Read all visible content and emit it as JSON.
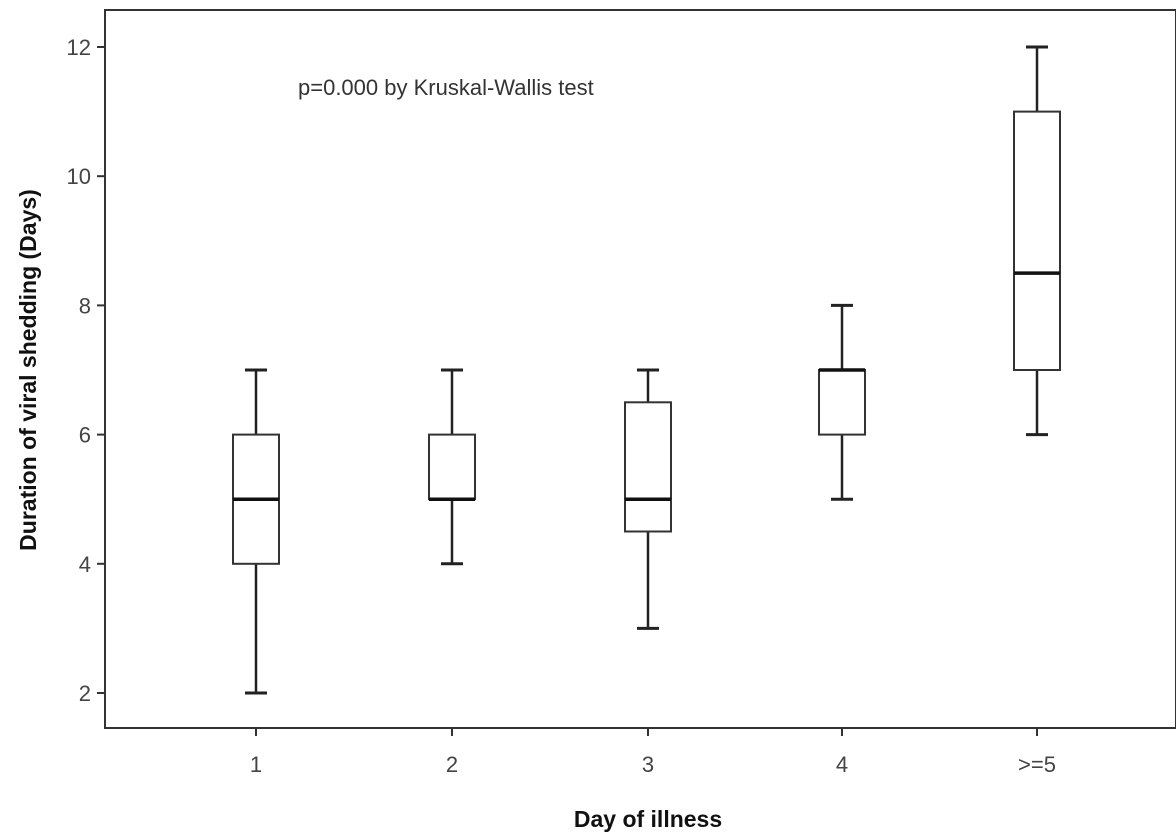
{
  "chart_data": {
    "type": "box",
    "title": "",
    "annotation": "p=0.000 by Kruskal-Wallis test",
    "xlabel": "Day of illness",
    "ylabel": "Duration of viral shedding (Days)",
    "ylim": [
      1.5,
      12.6
    ],
    "yticks": [
      2,
      4,
      6,
      8,
      10,
      12
    ],
    "categories": [
      "1",
      "2",
      "3",
      "4",
      ">=5"
    ],
    "boxes": [
      {
        "category": "1",
        "whisker_low": 2,
        "q1": 4,
        "median": 5,
        "q3": 6,
        "whisker_high": 7
      },
      {
        "category": "2",
        "whisker_low": 4,
        "q1": 5,
        "median": 5,
        "q3": 6,
        "whisker_high": 7
      },
      {
        "category": "3",
        "whisker_low": 3,
        "q1": 4.5,
        "median": 5,
        "q3": 6.5,
        "whisker_high": 7
      },
      {
        "category": "4",
        "whisker_low": 5,
        "q1": 6,
        "median": 7,
        "q3": 7,
        "whisker_high": 8
      },
      {
        "category": ">=5",
        "whisker_low": 6,
        "q1": 7,
        "median": 8.5,
        "q3": 11,
        "whisker_high": 12
      }
    ],
    "grid": false,
    "legend": "none"
  }
}
